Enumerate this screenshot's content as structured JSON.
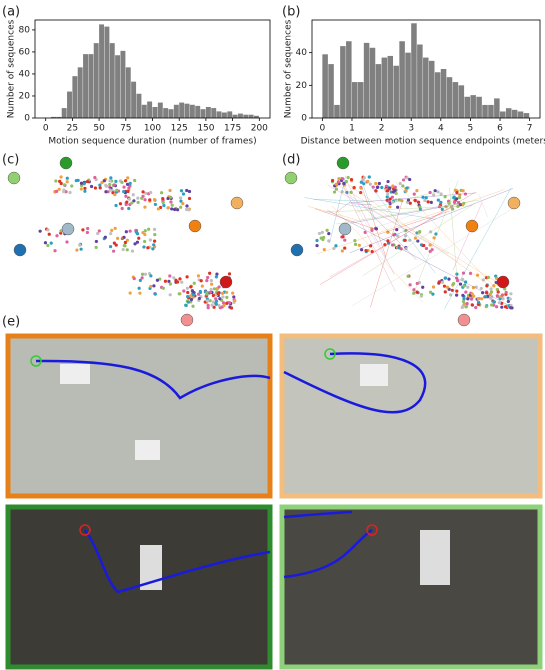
{
  "chart_data": [
    {
      "type": "histogram",
      "panel_label": "(a)",
      "xlabel": "Motion sequence duration (number of frames)",
      "ylabel": "Number of sequences",
      "color": "#808080",
      "bins": [
        0,
        5,
        10,
        15,
        20,
        25,
        30,
        35,
        40,
        45,
        50,
        55,
        60,
        65,
        70,
        75,
        80,
        85,
        90,
        95,
        100,
        105,
        110,
        115,
        120,
        125,
        130,
        135,
        140,
        145,
        150,
        155,
        160,
        165,
        170,
        175,
        180,
        185,
        190,
        195,
        200
      ],
      "values": [
        0,
        1,
        1,
        9,
        24,
        38,
        46,
        58,
        58,
        68,
        85,
        83,
        68,
        57,
        61,
        46,
        33,
        22,
        12,
        15,
        10,
        14,
        9,
        8,
        12,
        14,
        13,
        12,
        11,
        8,
        10,
        9,
        6,
        5,
        6,
        3,
        4,
        3,
        3,
        2
      ],
      "xlim": [
        -10,
        210
      ],
      "xticks": [
        0,
        25,
        50,
        75,
        100,
        125,
        150,
        175,
        200
      ],
      "ylim": [
        0,
        89
      ],
      "yticks": [
        0,
        20,
        40,
        60,
        80
      ]
    },
    {
      "type": "histogram",
      "panel_label": "(b)",
      "xlabel": "Distance between motion sequence endpoints (meters)",
      "ylabel": "Number of sequences",
      "color": "#808080",
      "bins": [
        0,
        0.2,
        0.4,
        0.6,
        0.8,
        1,
        1.2,
        1.4,
        1.6,
        1.8,
        2,
        2.2,
        2.4,
        2.6,
        2.8,
        3,
        3.2,
        3.4,
        3.6,
        3.8,
        4,
        4.2,
        4.4,
        4.6,
        4.8,
        5,
        5.2,
        5.4,
        5.6,
        5.8,
        6,
        6.2,
        6.4,
        6.6,
        6.8,
        7
      ],
      "values": [
        39,
        33,
        8,
        44,
        47,
        22,
        22,
        46,
        43,
        33,
        37,
        38,
        32,
        47,
        40,
        58,
        45,
        37,
        35,
        28,
        30,
        25,
        22,
        20,
        13,
        14,
        13,
        8,
        8,
        12,
        4,
        6,
        5,
        4,
        3
      ],
      "xlim": [
        -0.35,
        7.35
      ],
      "xticks": [
        0,
        1,
        2,
        3,
        4,
        5,
        6,
        7
      ],
      "ylim": [
        0,
        60
      ],
      "yticks": [
        0,
        20,
        40
      ]
    }
  ],
  "panel_labels": {
    "c": "(c)",
    "d": "(d)",
    "e": "(e)"
  }
}
